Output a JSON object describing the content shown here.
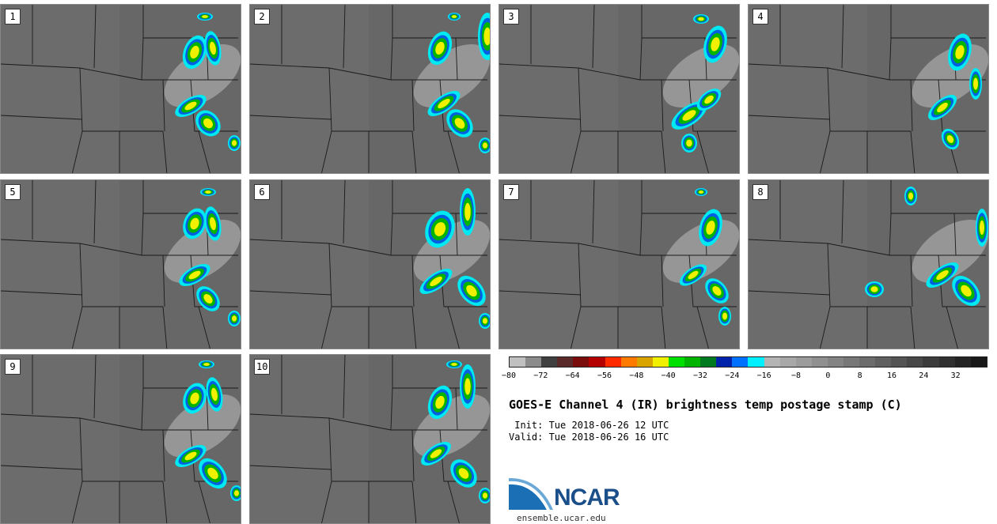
{
  "title": "GOES-E Channel 4 (IR) brightness temp postage stamp (C)",
  "init_line": " Init: Tue 2018-06-26 12 UTC",
  "valid_line": "Valid: Tue 2018-06-26 16 UTC",
  "logo_text": "NCAR",
  "url": "ensemble.ucar.edu",
  "panels": [
    "1",
    "2",
    "3",
    "4",
    "5",
    "6",
    "7",
    "8",
    "9",
    "10"
  ],
  "colorbar": {
    "colors": [
      "#c0c0c0",
      "#8c8c8c",
      "#404040",
      "#5a2a2a",
      "#7a0c0c",
      "#b40000",
      "#ff2a00",
      "#ff7a00",
      "#d9a300",
      "#f0f000",
      "#00e000",
      "#00b400",
      "#007a1e",
      "#0022aa",
      "#0070ff",
      "#00f0ff",
      "#b4b4b4",
      "#a8a8a8",
      "#9c9c9c",
      "#909090",
      "#848484",
      "#787878",
      "#6c6c6c",
      "#606060",
      "#545454",
      "#484848",
      "#3c3c3c",
      "#303030",
      "#242424",
      "#181818"
    ],
    "tick_labels": [
      "−80",
      "−72",
      "−64",
      "−56",
      "−48",
      "−40",
      "−32",
      "−24",
      "−16",
      "−8",
      "0",
      "8",
      "16",
      "24",
      "32"
    ]
  }
}
